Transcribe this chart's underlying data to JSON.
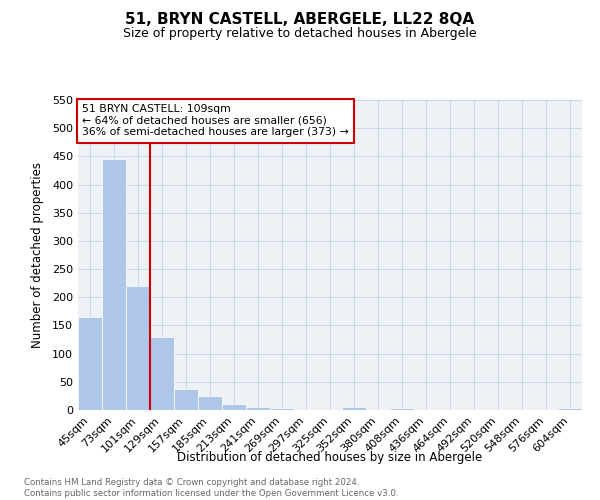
{
  "title": "51, BRYN CASTELL, ABERGELE, LL22 8QA",
  "subtitle": "Size of property relative to detached houses in Abergele",
  "xlabel": "Distribution of detached houses by size in Abergele",
  "ylabel": "Number of detached properties",
  "footer_line1": "Contains HM Land Registry data © Crown copyright and database right 2024.",
  "footer_line2": "Contains public sector information licensed under the Open Government Licence v3.0.",
  "bar_labels": [
    "45sqm",
    "73sqm",
    "101sqm",
    "129sqm",
    "157sqm",
    "185sqm",
    "213sqm",
    "241sqm",
    "269sqm",
    "297sqm",
    "325sqm",
    "352sqm",
    "380sqm",
    "408sqm",
    "436sqm",
    "464sqm",
    "492sqm",
    "520sqm",
    "548sqm",
    "576sqm",
    "604sqm"
  ],
  "bar_values": [
    165,
    445,
    220,
    130,
    37,
    25,
    11,
    6,
    3,
    0,
    0,
    5,
    0,
    4,
    0,
    0,
    0,
    0,
    0,
    0,
    4
  ],
  "bar_color": "#aec6e8",
  "grid_color": "#c8d8e8",
  "background_color": "#eef2f7",
  "vline_color": "#cc0000",
  "annotation_box_color": "#cc0000",
  "ylim": [
    0,
    550
  ],
  "yticks": [
    0,
    50,
    100,
    150,
    200,
    250,
    300,
    350,
    400,
    450,
    500,
    550
  ],
  "annotation_text": "51 BRYN CASTELL: 109sqm\n← 64% of detached houses are smaller (656)\n36% of semi-detached houses are larger (373) →"
}
